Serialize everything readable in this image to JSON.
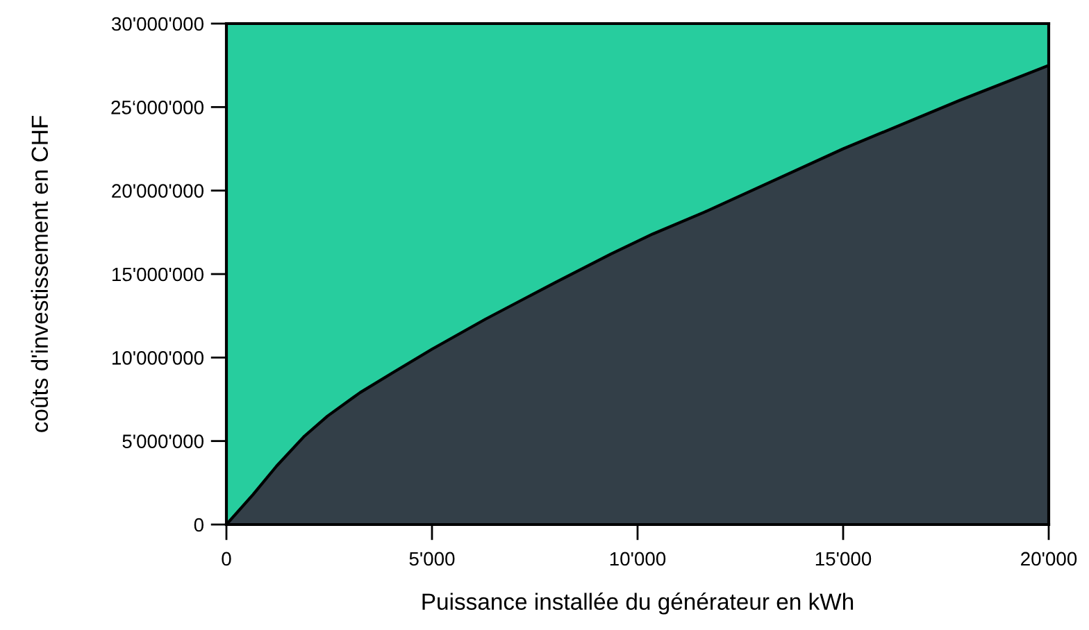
{
  "chart_data": {
    "type": "area",
    "xlabel": "Puissance installée du générateur en kWh",
    "ylabel": "coûts d'investissement en CHF",
    "stacked": true,
    "x": [
      0,
      650,
      1220,
      1900,
      2460,
      3250,
      4050,
      5000,
      6300,
      8000,
      9350,
      10370,
      11620,
      15000,
      17830,
      20000
    ],
    "series": [
      {
        "color": "#333f48",
        "values": [
          0,
          1800000,
          3500000,
          5300000,
          6500000,
          7900000,
          9100000,
          10500000,
          12300000,
          14500000,
          16200000,
          17400000,
          18700000,
          22500000,
          25400000,
          27500000
        ]
      },
      {
        "color": "#27cd9e",
        "values": [
          30000000,
          28200000,
          26500000,
          24700000,
          23500000,
          22100000,
          20900000,
          19500000,
          17700000,
          15500000,
          13800000,
          12600000,
          11300000,
          7500000,
          4600000,
          2500000
        ]
      }
    ],
    "xlim": [
      0,
      20000
    ],
    "ylim": [
      0,
      30000000
    ],
    "xticks": [
      0,
      {
        "value": 5000,
        "label": "5'000"
      },
      {
        "value": 10000,
        "label": "10'000"
      },
      {
        "value": 15000,
        "label": "15'000"
      },
      {
        "value": 20000,
        "label": "20'000"
      }
    ],
    "yticks": [
      0,
      {
        "value": 5000000,
        "label": "5'000'000"
      },
      {
        "value": 10000000,
        "label": "10'000'000"
      },
      {
        "value": 15000000,
        "label": "15'000'000"
      },
      {
        "value": 20000000,
        "label": "20'000'000"
      },
      {
        "value": 25000000,
        "label": "25‘000'000"
      },
      {
        "value": 30000000,
        "label": "30'000'000"
      }
    ],
    "grid": false,
    "legend": false
  }
}
